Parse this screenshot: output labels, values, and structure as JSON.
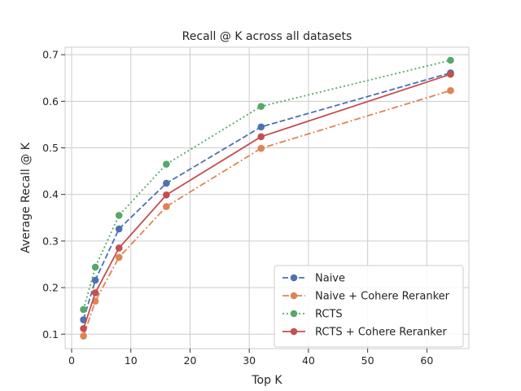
{
  "chart_data": {
    "type": "line",
    "title": "Recall @ K across all datasets",
    "xlabel": "Top K",
    "ylabel": "Average Recall @ K",
    "xlim": [
      -1.1,
      67.1
    ],
    "ylim": [
      0.069,
      0.716
    ],
    "xticks": [
      0,
      10,
      20,
      30,
      40,
      50,
      60
    ],
    "yticks": [
      0.1,
      0.2,
      0.3,
      0.4,
      0.5,
      0.6,
      0.7
    ],
    "grid": true,
    "legend_position": "lower-right",
    "x": [
      2,
      4,
      8,
      16,
      32,
      64
    ],
    "series": [
      {
        "name": "Naive",
        "color": "#4c72b0",
        "linestyle": "dashed",
        "values": [
          0.131,
          0.216,
          0.326,
          0.424,
          0.545,
          0.661
        ]
      },
      {
        "name": "Naive + Cohere Reranker",
        "color": "#dd8452",
        "linestyle": "dashdot",
        "values": [
          0.096,
          0.171,
          0.265,
          0.374,
          0.499,
          0.623
        ]
      },
      {
        "name": "RCTS",
        "color": "#55a868",
        "linestyle": "dotted",
        "values": [
          0.153,
          0.244,
          0.355,
          0.465,
          0.589,
          0.688
        ]
      },
      {
        "name": "RCTS + Cohere Reranker",
        "color": "#c44e52",
        "linestyle": "solid",
        "values": [
          0.112,
          0.189,
          0.285,
          0.399,
          0.524,
          0.658
        ]
      }
    ]
  }
}
